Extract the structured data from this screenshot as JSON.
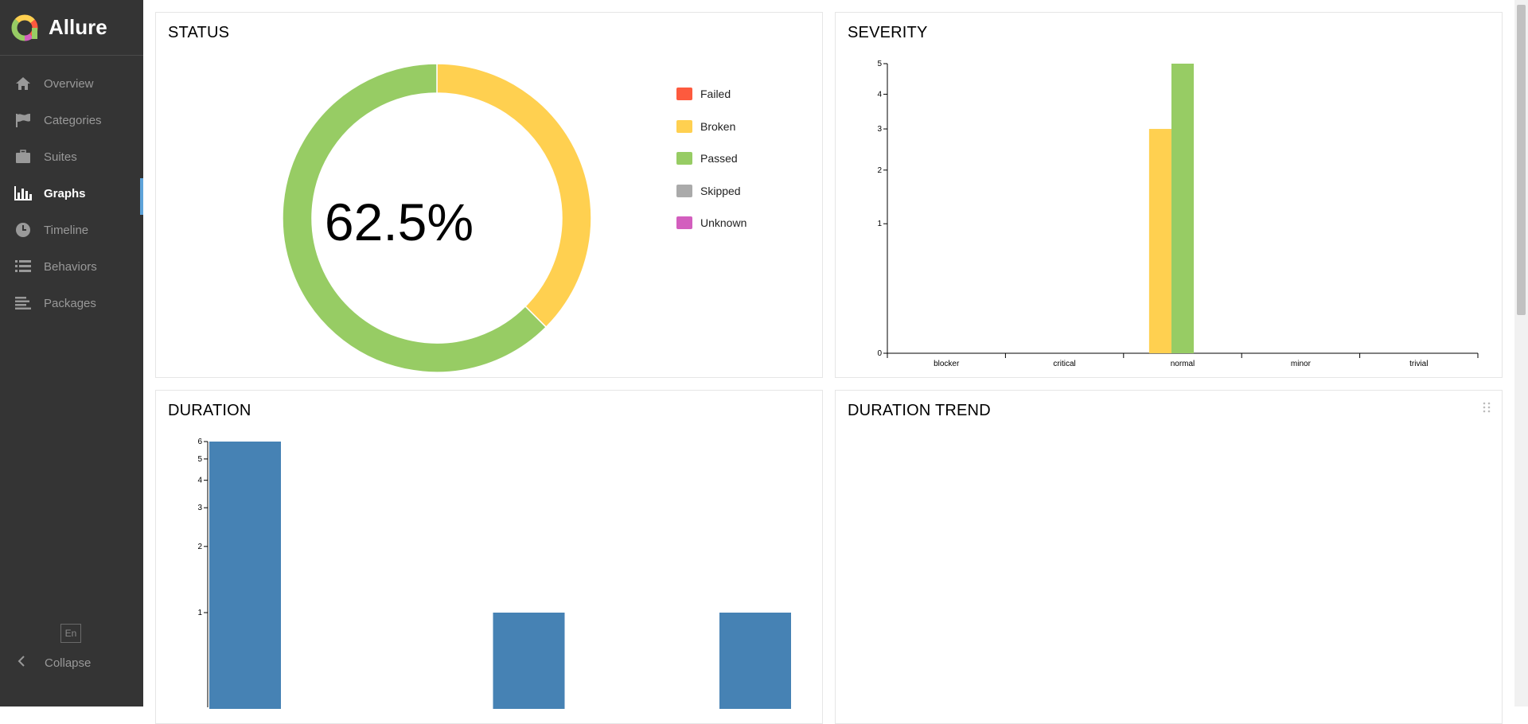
{
  "app": {
    "title": "Allure"
  },
  "sidebar": {
    "items": [
      {
        "label": "Overview",
        "icon": "home-icon"
      },
      {
        "label": "Categories",
        "icon": "flag-icon"
      },
      {
        "label": "Suites",
        "icon": "briefcase-icon"
      },
      {
        "label": "Graphs",
        "icon": "bar-chart-icon",
        "active": true
      },
      {
        "label": "Timeline",
        "icon": "clock-icon"
      },
      {
        "label": "Behaviors",
        "icon": "list-icon"
      },
      {
        "label": "Packages",
        "icon": "align-left-icon"
      }
    ],
    "language": "En",
    "collapse_label": "Collapse"
  },
  "widgets": {
    "status": {
      "title": "STATUS",
      "percent_label": "62.5%"
    },
    "severity": {
      "title": "SEVERITY"
    },
    "duration": {
      "title": "DURATION"
    },
    "duration_trend": {
      "title": "DURATION TREND"
    }
  },
  "colors": {
    "failed": "#fd5a3e",
    "broken": "#ffd050",
    "passed": "#97cc64",
    "skipped": "#aaaaaa",
    "unknown": "#d35ebe",
    "duration_bar": "#4682b4",
    "accent": "#5ea3d9"
  },
  "chart_data": [
    {
      "type": "pie",
      "title": "STATUS",
      "legend_position": "right",
      "categories": [
        "Failed",
        "Broken",
        "Passed",
        "Skipped",
        "Unknown"
      ],
      "values": [
        0,
        3,
        5,
        0,
        0
      ],
      "center_label": "62.5%"
    },
    {
      "type": "bar",
      "title": "SEVERITY",
      "categories": [
        "blocker",
        "critical",
        "normal",
        "minor",
        "trivial"
      ],
      "y_scale": "sqrt",
      "y_ticks": [
        0,
        1,
        2,
        3,
        4,
        5
      ],
      "ylim": [
        0,
        5
      ],
      "series": [
        {
          "name": "Failed",
          "values": [
            0,
            0,
            0,
            0,
            0
          ]
        },
        {
          "name": "Broken",
          "values": [
            0,
            0,
            3,
            0,
            0
          ]
        },
        {
          "name": "Passed",
          "values": [
            0,
            0,
            5,
            0,
            0
          ]
        },
        {
          "name": "Skipped",
          "values": [
            0,
            0,
            0,
            0,
            0
          ]
        },
        {
          "name": "Unknown",
          "values": [
            0,
            0,
            0,
            0,
            0
          ]
        }
      ]
    },
    {
      "type": "bar",
      "title": "DURATION",
      "y_scale": "log",
      "y_ticks": [
        1,
        2,
        3,
        4,
        5,
        6
      ],
      "values": [
        6,
        1,
        1
      ]
    }
  ]
}
